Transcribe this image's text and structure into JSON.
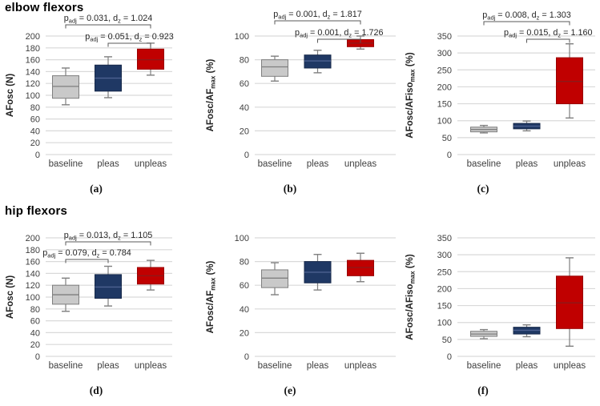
{
  "figure": {
    "rows": [
      {
        "title": "elbow flexors"
      },
      {
        "title": "hip flexors"
      }
    ]
  },
  "annotation_format": {
    "p_base": "p",
    "p_sub": "adj",
    "d_base": "d",
    "d_sub": "z",
    "eq": " = ",
    "sep": ", "
  },
  "colors": {
    "grid": "#d9d9d9",
    "whisker": "#7f7f7f",
    "bracket": "#595959",
    "tick_text": "#3f3f3f",
    "annotation_text": "#262626",
    "baseline": {
      "fill": "#c9c9c9",
      "stroke": "#7f7f7f",
      "median": "#7f7f7f"
    },
    "pleas": {
      "fill": "#1f3864",
      "stroke": "#17294a",
      "median": "#4d6190"
    },
    "unpleas": {
      "fill": "#c00000",
      "stroke": "#9a0000",
      "median": "#8b1a1a"
    }
  },
  "chart_data": [
    {
      "id": "a",
      "letter": "(a)",
      "row": 0,
      "col": 0,
      "type": "box",
      "group": "elbow flexors",
      "ylabel": "AFosc (N)",
      "ylabel_parts": [
        {
          "t": "AFosc (N)"
        }
      ],
      "ylim": [
        0,
        200
      ],
      "ystep": 20,
      "grid": true,
      "categories": [
        "baseline",
        "pleas",
        "unpleas"
      ],
      "series": [
        {
          "name": "baseline",
          "low": 84,
          "q1": 95,
          "median": 115,
          "q3": 133,
          "high": 146
        },
        {
          "name": "pleas",
          "low": 96,
          "q1": 107,
          "median": 129,
          "q3": 151,
          "high": 165
        },
        {
          "name": "unpleas",
          "low": 134,
          "q1": 144,
          "median": 160,
          "q3": 178,
          "high": 188
        }
      ],
      "annotations": [
        {
          "from": 0,
          "to": 2,
          "p": "0.031",
          "dz": "1.024",
          "bracket_y": 31
        },
        {
          "from": 1,
          "to": 2,
          "p": "0.051",
          "dz": "0.923",
          "bracket_y": 54
        }
      ]
    },
    {
      "id": "b",
      "letter": "(b)",
      "row": 0,
      "col": 1,
      "type": "box",
      "group": "elbow flexors",
      "ylabel": "AFosc/AFmax (%)",
      "ylabel_parts": [
        {
          "t": "AFosc/AF"
        },
        {
          "t": "max",
          "sub": true
        },
        {
          "t": " (%)"
        }
      ],
      "ylim": [
        0,
        100
      ],
      "ystep": 20,
      "grid": true,
      "categories": [
        "baseline",
        "pleas",
        "unpleas"
      ],
      "series": [
        {
          "name": "baseline",
          "low": 62,
          "q1": 66,
          "median": 74,
          "q3": 80,
          "high": 83
        },
        {
          "name": "pleas",
          "low": 69,
          "q1": 73,
          "median": 79,
          "q3": 84,
          "high": 88
        },
        {
          "name": "unpleas",
          "low": 89,
          "q1": 91,
          "median": 94,
          "q3": 97,
          "high": 100
        }
      ],
      "annotations": [
        {
          "from": 0,
          "to": 2,
          "p": "0.001",
          "dz": "1.817",
          "bracket_y": 26
        },
        {
          "from": 1,
          "to": 2,
          "p": "0.001",
          "dz": "1.726",
          "bracket_y": 49
        }
      ]
    },
    {
      "id": "c",
      "letter": "(c)",
      "row": 0,
      "col": 2,
      "type": "box",
      "group": "elbow flexors",
      "ylabel": "AFosc/AFisomax (%)",
      "ylabel_parts": [
        {
          "t": "AFosc/AFiso"
        },
        {
          "t": "max",
          "sub": true
        },
        {
          "t": " (%)"
        }
      ],
      "ylim": [
        0,
        350
      ],
      "ystep": 50,
      "grid": true,
      "categories": [
        "baseline",
        "pleas",
        "unpleas"
      ],
      "series": [
        {
          "name": "baseline",
          "low": 64,
          "q1": 67,
          "median": 74,
          "q3": 81,
          "high": 86
        },
        {
          "name": "pleas",
          "low": 70,
          "q1": 76,
          "median": 84,
          "q3": 92,
          "high": 99
        },
        {
          "name": "unpleas",
          "low": 108,
          "q1": 150,
          "median": 216,
          "q3": 286,
          "high": 327
        }
      ],
      "annotations": [
        {
          "from": 0,
          "to": 2,
          "p": "0.008",
          "dz": "1.303",
          "bracket_y": 27
        },
        {
          "from": 1,
          "to": 2,
          "p": "0.015",
          "dz": "1.160",
          "bracket_y": 49
        }
      ]
    },
    {
      "id": "d",
      "letter": "(d)",
      "row": 1,
      "col": 0,
      "type": "box",
      "group": "hip flexors",
      "ylabel": "AFosc (N)",
      "ylabel_parts": [
        {
          "t": "AFosc (N)"
        }
      ],
      "ylim": [
        0,
        200
      ],
      "ystep": 20,
      "grid": true,
      "categories": [
        "baseline",
        "pleas",
        "unpleas"
      ],
      "series": [
        {
          "name": "baseline",
          "low": 76,
          "q1": 88,
          "median": 104,
          "q3": 120,
          "high": 132
        },
        {
          "name": "pleas",
          "low": 85,
          "q1": 98,
          "median": 117,
          "q3": 138,
          "high": 152
        },
        {
          "name": "unpleas",
          "low": 112,
          "q1": 122,
          "median": 136,
          "q3": 150,
          "high": 162
        }
      ],
      "annotations": [
        {
          "from": 0,
          "to": 2,
          "p": "0.013",
          "dz": "1.105",
          "bracket_y": 50
        },
        {
          "from": 0,
          "to": 1,
          "p": "0.079",
          "dz": "0.784",
          "bracket_y": 72
        }
      ]
    },
    {
      "id": "e",
      "letter": "(e)",
      "row": 1,
      "col": 1,
      "type": "box",
      "group": "hip flexors",
      "ylabel": "AFosc/AFmax (%)",
      "ylabel_parts": [
        {
          "t": "AFosc/AF"
        },
        {
          "t": "max",
          "sub": true
        },
        {
          "t": " (%)"
        }
      ],
      "ylim": [
        0,
        100
      ],
      "ystep": 20,
      "grid": true,
      "categories": [
        "baseline",
        "pleas",
        "unpleas"
      ],
      "series": [
        {
          "name": "baseline",
          "low": 52,
          "q1": 58,
          "median": 66,
          "q3": 73,
          "high": 79
        },
        {
          "name": "pleas",
          "low": 56,
          "q1": 62,
          "median": 71,
          "q3": 80,
          "high": 86
        },
        {
          "name": "unpleas",
          "low": 63,
          "q1": 68,
          "median": 75,
          "q3": 81,
          "high": 87
        }
      ],
      "annotations": []
    },
    {
      "id": "f",
      "letter": "(f)",
      "row": 1,
      "col": 2,
      "type": "box",
      "group": "hip flexors",
      "ylabel": "AFosc/AFisomax (%)",
      "ylabel_parts": [
        {
          "t": "AFosc/AFiso"
        },
        {
          "t": "max",
          "sub": true
        },
        {
          "t": " (%)"
        }
      ],
      "ylim": [
        0,
        350
      ],
      "ystep": 50,
      "grid": true,
      "categories": [
        "baseline",
        "pleas",
        "unpleas"
      ],
      "series": [
        {
          "name": "baseline",
          "low": 52,
          "q1": 59,
          "median": 66,
          "q3": 74,
          "high": 79
        },
        {
          "name": "pleas",
          "low": 58,
          "q1": 66,
          "median": 77,
          "q3": 86,
          "high": 93
        },
        {
          "name": "unpleas",
          "low": 30,
          "q1": 82,
          "median": 158,
          "q3": 237,
          "high": 291
        }
      ],
      "annotations": []
    }
  ]
}
